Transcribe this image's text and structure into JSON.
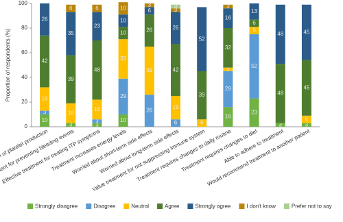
{
  "chart_data": {
    "type": "stacked_bar",
    "y_label": "Proportion of respondents (%)",
    "categories": [
      "Satisfied with control of platelet production",
      "Effective treatment for preventing bleeding events",
      "Effective treatment for treating ITP symptoms",
      "Treatment increases energy levels",
      "Worried about short-term side effects",
      "Worried about long-term side effects",
      "Value treatment for not suppressing immune system",
      "Treatment requires changes to daily routine",
      "Treatment requires changes to diet",
      "Able to adhere to treatment",
      "Would recommend treatment to another patient"
    ],
    "series": [
      {
        "name": "Strongly disagree",
        "color": "#70b244",
        "values": [
          10,
          3,
          3,
          10,
          null,
          null,
          null,
          16,
          23,
          3,
          3
        ]
      },
      {
        "name": "Disagree",
        "color": "#5b9bd5",
        "values": [
          3,
          null,
          3,
          29,
          26,
          6,
          null,
          29,
          52,
          null,
          null
        ]
      },
      {
        "name": "Neutral",
        "color": "#ffc000",
        "values": [
          19,
          16,
          16,
          32,
          39,
          19,
          6,
          3,
          6,
          null,
          6
        ]
      },
      {
        "name": "Agree",
        "color": "#4e7d2f",
        "values": [
          42,
          39,
          48,
          10,
          26,
          42,
          39,
          32,
          6,
          48,
          45
        ]
      },
      {
        "name": "Strongly agree",
        "color": "#2b5c8a",
        "values": [
          26,
          35,
          23,
          10,
          6,
          26,
          52,
          16,
          13,
          48,
          45
        ]
      },
      {
        "name": "I don't know",
        "color": "#b8860b",
        "values": [
          null,
          6,
          6,
          10,
          3,
          3,
          null,
          3,
          null,
          null,
          null
        ]
      },
      {
        "name": "Prefer not to say",
        "color": "#a9d18e",
        "values": [
          null,
          null,
          null,
          null,
          null,
          3,
          null,
          null,
          null,
          null,
          null
        ]
      }
    ],
    "ylim": [
      0,
      100
    ],
    "yticks": [
      0,
      20,
      40,
      60,
      80,
      100
    ]
  }
}
